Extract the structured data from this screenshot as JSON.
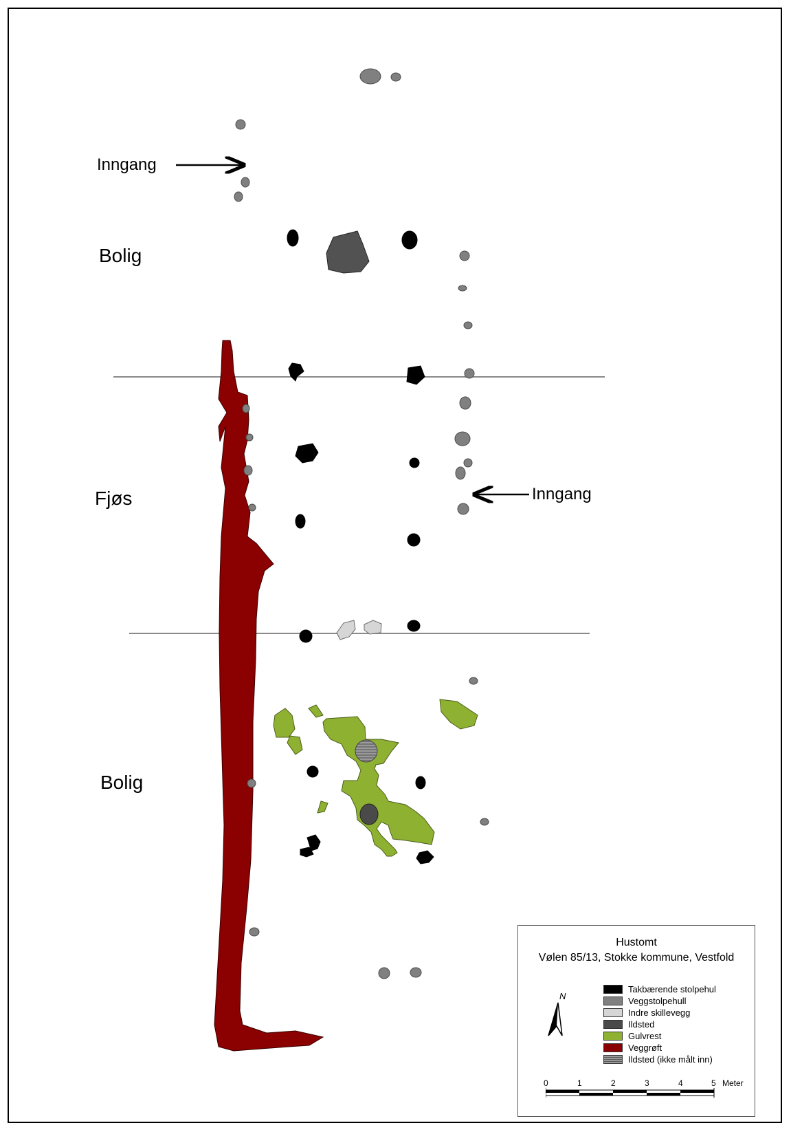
{
  "labels": {
    "zone_top": "Bolig",
    "zone_middle": "Fjøs",
    "zone_bottom": "Bolig",
    "entrance_top": "Inngang",
    "entrance_right": "Inngang"
  },
  "legend": {
    "title_line1": "Hustomt",
    "title_line2": "Vølen 85/13, Stokke kommune, Vestfold",
    "north": "N",
    "items": [
      {
        "label": "Takbærende stolpehul",
        "color": "#000000"
      },
      {
        "label": "Veggstolpehull",
        "color": "#808080"
      },
      {
        "label": "Indre skillevegg",
        "color": "#d6d6d6"
      },
      {
        "label": "Ildsted",
        "color": "#4a4a4a"
      },
      {
        "label": "Gulvrest",
        "color": "#8fb132"
      },
      {
        "label": "Veggrøft",
        "color": "#8b0000"
      },
      {
        "label": "Ildsted (ikke målt inn)",
        "color": "#8c8c8c"
      }
    ],
    "scale_ticks": [
      "0",
      "1",
      "2",
      "3",
      "4",
      "5"
    ],
    "scale_unit": "Meter"
  }
}
